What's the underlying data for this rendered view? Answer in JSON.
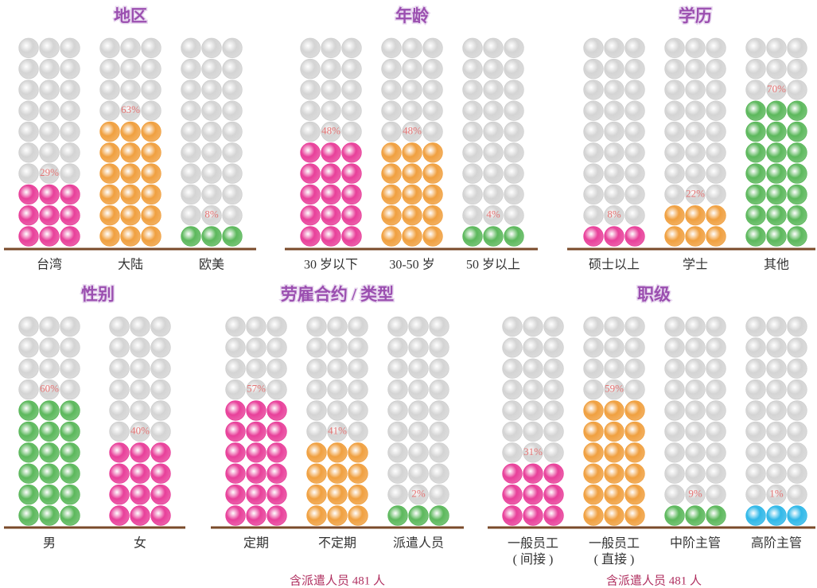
{
  "chart_data": [
    {
      "type": "pictograph",
      "title": "地区",
      "categories": [
        "台湾",
        "大陆",
        "欧美"
      ],
      "values": [
        29,
        63,
        8
      ],
      "value_labels": [
        "29%",
        "63%",
        "8%"
      ],
      "colors": [
        "#e8409a",
        "#f0a040",
        "#5cb85c"
      ]
    },
    {
      "type": "pictograph",
      "title": "年龄",
      "categories": [
        "30 岁以下",
        "30-50 岁",
        "50 岁以上"
      ],
      "values": [
        48,
        48,
        4
      ],
      "value_labels": [
        "48%",
        "48%",
        "4%"
      ],
      "colors": [
        "#e8409a",
        "#f0a040",
        "#5cb85c"
      ]
    },
    {
      "type": "pictograph",
      "title": "学历",
      "categories": [
        "硕士以上",
        "学士",
        "其他"
      ],
      "values": [
        8,
        22,
        70
      ],
      "value_labels": [
        "8%",
        "22%",
        "70%"
      ],
      "colors": [
        "#e8409a",
        "#f0a040",
        "#5cb85c"
      ]
    },
    {
      "type": "pictograph",
      "title": "性别",
      "categories": [
        "男",
        "女"
      ],
      "values": [
        60,
        40
      ],
      "value_labels": [
        "60%",
        "40%"
      ],
      "colors": [
        "#5cb85c",
        "#e8409a"
      ]
    },
    {
      "type": "pictograph",
      "title": "劳雇合约 / 类型",
      "categories": [
        "定期",
        "不定期",
        "派遣人员"
      ],
      "values": [
        57,
        41,
        2
      ],
      "value_labels": [
        "57%",
        "41%",
        "2%"
      ],
      "colors": [
        "#e8409a",
        "#f0a040",
        "#5cb85c"
      ],
      "note": "含派遣人员 481 人"
    },
    {
      "type": "pictograph",
      "title": "职级",
      "categories": [
        "一般员工\n( 间接 )",
        "一般员工\n( 直接 )",
        "中阶主管",
        "高阶主管"
      ],
      "values": [
        31,
        59,
        9,
        1
      ],
      "value_labels": [
        "31%",
        "59%",
        "9%",
        "1%"
      ],
      "colors": [
        "#e8409a",
        "#f0a040",
        "#5cb85c",
        "#30b8e8"
      ],
      "note": "含派遣人员 481 人"
    }
  ]
}
